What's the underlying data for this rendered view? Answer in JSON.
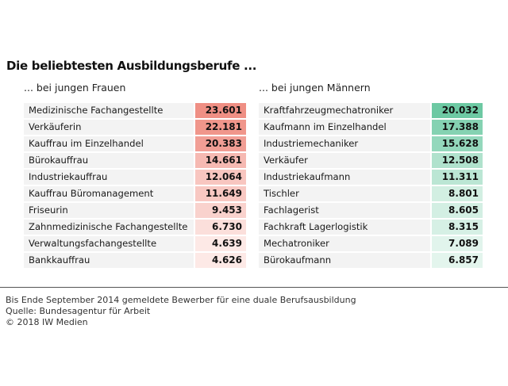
{
  "title": "Die beliebtesten Ausbildungsberufe ...",
  "colors": {
    "women_dark": "#ef8f84",
    "women_light": "#fde9e6",
    "men_dark": "#6dc9a3",
    "men_light": "#e3f5ed",
    "label_bg": "#f3f3f3"
  },
  "chart_data": [
    {
      "type": "table",
      "title": "... bei jungen Frauen",
      "categories": [
        "Medizinische Fachangestellte",
        "Verkäuferin",
        "Kauffrau im Einzelhandel",
        "Bürokauffrau",
        "Industriekauffrau",
        "Kauffrau Büromanagement",
        "Friseurin",
        "Zahnmedizinische Fachangestellte",
        "Verwaltungsfachangestellte",
        "Bankkauffrau"
      ],
      "values": [
        23601,
        22181,
        20383,
        14661,
        12064,
        11649,
        9453,
        6730,
        4639,
        4626
      ],
      "value_labels": [
        "23.601",
        "22.181",
        "20.383",
        "14.661",
        "12.064",
        "11.649",
        "9.453",
        "6.730",
        "4.639",
        "4.626"
      ]
    },
    {
      "type": "table",
      "title": "... bei jungen Männern",
      "categories": [
        "Kraftfahrzeugmechatroniker",
        "Kaufmann im Einzelhandel",
        "Industriemechaniker",
        "Verkäufer",
        "Industriekaufmann",
        "Tischler",
        "Fachlagerist",
        "Fachkraft Lagerlogistik",
        "Mechatroniker",
        "Bürokaufmann"
      ],
      "values": [
        20032,
        17388,
        15628,
        12508,
        11311,
        8801,
        8605,
        8315,
        7089,
        6857
      ],
      "value_labels": [
        "20.032",
        "17.388",
        "15.628",
        "12.508",
        "11.311",
        "8.801",
        "8.605",
        "8.315",
        "7.089",
        "6.857"
      ]
    }
  ],
  "footer": {
    "note": "Bis Ende September 2014 gemeldete Bewerber für eine duale Berufsausbildung",
    "source": "Quelle: Bundesagentur für Arbeit",
    "copyright": "© 2018 IW Medien"
  }
}
